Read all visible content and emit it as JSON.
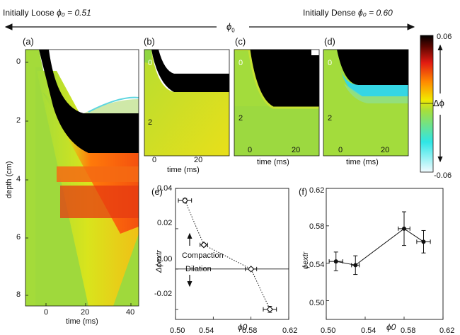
{
  "header": {
    "left_label": "Initially Loose",
    "right_label": "Initially Dense",
    "phi0_symbol": "ϕ",
    "phi0_sub": "0",
    "left_value": "ϕ₀ = 0.51",
    "right_value": "ϕ₀ = 0.60"
  },
  "panels": {
    "a": "(a)",
    "b": "(b)",
    "c": "(c)",
    "d": "(d)",
    "e": "(e)",
    "f": "(f)"
  },
  "heatmaps": {
    "depth_axis_label": "depth (cm)",
    "time_axis_label": "time (ms)",
    "a_depth_ticks": [
      "0",
      "2",
      "4",
      "6",
      "8"
    ],
    "a_time_ticks": [
      "0",
      "20",
      "40"
    ],
    "b_depth_ticks": [
      "0",
      "2"
    ],
    "b_time_ticks": [
      "0",
      "20"
    ],
    "c_depth_ticks": [
      "0",
      "2"
    ],
    "c_time_ticks": [
      "0",
      "20"
    ],
    "d_depth_ticks": [
      "0",
      "2"
    ],
    "d_time_ticks": [
      "0",
      "20"
    ]
  },
  "colorbar": {
    "max_label": "0.06",
    "min_label": "-0.06",
    "symbol": "Δϕ",
    "colors": [
      "#f2fbff",
      "#2ee6e6",
      "#a6df3c",
      "#f2e800",
      "#ff8a00",
      "#e21b12",
      "#5a0500",
      "#000000"
    ]
  },
  "chart_data": [
    {
      "type": "scatter",
      "panel": "(e)",
      "xlabel": "ϕ0",
      "ylabel": "Δϕextr",
      "xlim": [
        0.5,
        0.62
      ],
      "ylim": [
        -0.025,
        0.04
      ],
      "x_ticks": [
        "0.50",
        "0.54",
        "0.58",
        "0.62"
      ],
      "y_ticks": [
        "-0.02",
        "0.00",
        "0.02",
        "0.04"
      ],
      "annotations": [
        "Compaction",
        "Dilation"
      ],
      "connector": "dotted",
      "points": [
        {
          "x": 0.51,
          "y": 0.034,
          "xerr": 0.007,
          "yerr": 0.001
        },
        {
          "x": 0.53,
          "y": 0.012,
          "xerr": 0.004,
          "yerr": 0.0008
        },
        {
          "x": 0.58,
          "y": 0.0,
          "xerr": 0.006,
          "yerr": 0.0006
        },
        {
          "x": 0.6,
          "y": -0.02,
          "xerr": 0.007,
          "yerr": 0.0015
        }
      ]
    },
    {
      "type": "line",
      "panel": "(f)",
      "xlabel": "ϕ0",
      "ylabel": "ϕextr",
      "xlim": [
        0.5,
        0.62
      ],
      "ylim": [
        0.48,
        0.62
      ],
      "x_ticks": [
        "0.50",
        "0.54",
        "0.58",
        "0.62"
      ],
      "y_ticks": [
        "0.50",
        "0.54",
        "0.58",
        "0.62"
      ],
      "points": [
        {
          "x": 0.51,
          "y": 0.542,
          "xerr": 0.007,
          "yerr": 0.01
        },
        {
          "x": 0.53,
          "y": 0.538,
          "xerr": 0.004,
          "yerr": 0.01
        },
        {
          "x": 0.58,
          "y": 0.577,
          "xerr": 0.006,
          "yerr": 0.018
        },
        {
          "x": 0.6,
          "y": 0.563,
          "xerr": 0.007,
          "yerr": 0.012
        }
      ]
    }
  ]
}
